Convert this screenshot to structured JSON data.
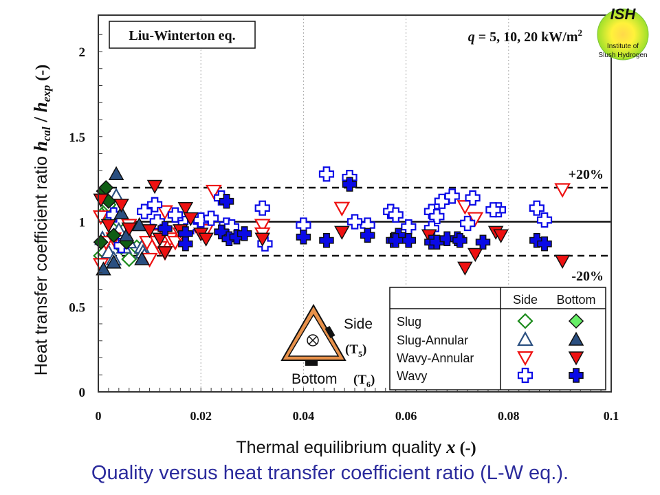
{
  "caption": "Quality versus heat transfer coefficient ratio (L-W eq.).",
  "logo": {
    "abbr": "ISH",
    "line1": "Institute of",
    "line2": "Slush Hydrogen"
  },
  "chart_data": {
    "type": "scatter",
    "title": "Liu-Winterton eq.",
    "annotation": "q = 5, 10, 20 kW/m²",
    "annotation_parts": {
      "var": "q",
      "rest": " = 5, 10, 20 kW/m",
      "sup": "2"
    },
    "xlabel": "Thermal equilibrium quality x (-)",
    "xlabel_parts": {
      "main": "Thermal equilibrium quality ",
      "var": "x",
      "unit": " (-)"
    },
    "ylabel": "Heat transfer coefficient ratio h_cal / h_exp (-)",
    "ylabel_parts": {
      "main": "Heat transfer coefficient ratio ",
      "h1": "h",
      "s1": "cal",
      "slash": " / ",
      "h2": "h",
      "s2": "exp",
      "unit": " (-)"
    },
    "xlim": [
      0,
      0.1
    ],
    "ylim": [
      0,
      2.2
    ],
    "xticks": [
      0,
      0.02,
      0.04,
      0.06,
      0.08,
      0.1
    ],
    "xtick_labels": [
      "0",
      "0.02",
      "0.04",
      "0.06",
      "0.08",
      "0.1"
    ],
    "yticks": [
      0,
      0.5,
      1,
      1.5,
      2
    ],
    "ytick_labels": [
      "0",
      "0.5",
      "1",
      "1.5",
      "2"
    ],
    "grid": "vertical dotted at major x ticks",
    "reference_lines": [
      {
        "y": 1.0,
        "style": "solid"
      },
      {
        "y": 1.2,
        "style": "dashed",
        "label": "+20%"
      },
      {
        "y": 0.8,
        "style": "dashed",
        "label": "-20%"
      }
    ],
    "legend": {
      "placement": "bottom-right",
      "columns": [
        "Side",
        "Bottom"
      ],
      "rows": [
        "Slug",
        "Slug-Annular",
        "Wavy-Annular",
        "Wavy"
      ]
    },
    "inset": {
      "side_label": "Side",
      "side_sensor": "T",
      "side_sub": "5",
      "bottom_label": "Bottom",
      "bottom_sensor": "T",
      "bottom_sub": "6"
    },
    "colors": {
      "slug": "#1a8a1a",
      "slug_fill": "#66ee66",
      "slug_bottom_dark": "#0f5e14",
      "slug_annular": "#2a4f80",
      "wavy_annular": "#ee1111",
      "wavy": "#0a0ae6",
      "inset_orange": "#e8914a"
    },
    "series": [
      {
        "name": "Slug - Side",
        "flow": "Slug",
        "position": "Side",
        "marker": "diamond-open",
        "points": [
          [
            0.0005,
            0.8
          ],
          [
            0.001,
            1.05
          ],
          [
            0.0012,
            0.82
          ],
          [
            0.002,
            1.08
          ],
          [
            0.003,
            0.96
          ],
          [
            0.004,
            1.0
          ],
          [
            0.0045,
            0.85
          ],
          [
            0.006,
            0.78
          ],
          [
            0.0075,
            0.85
          ],
          [
            0.002,
            1.1
          ]
        ]
      },
      {
        "name": "Slug - Bottom",
        "flow": "Slug",
        "position": "Bottom",
        "marker": "diamond-filled",
        "points": [
          [
            0.0005,
            0.88
          ],
          [
            0.001,
            1.18
          ],
          [
            0.0015,
            1.2
          ],
          [
            0.002,
            1.12
          ],
          [
            0.0055,
            0.88
          ],
          [
            0.003,
            0.92
          ]
        ]
      },
      {
        "name": "Slug-Annular - Side",
        "flow": "Slug-Annular",
        "position": "Side",
        "marker": "triangle-up-open",
        "points": [
          [
            0.0008,
            0.9
          ],
          [
            0.002,
            0.82
          ],
          [
            0.003,
            0.78
          ],
          [
            0.0035,
            1.15
          ],
          [
            0.005,
            0.85
          ],
          [
            0.006,
            0.88
          ],
          [
            0.0085,
            0.85
          ],
          [
            0.0087,
            0.82
          ],
          [
            0.009,
            0.8
          ],
          [
            0.004,
            0.95
          ]
        ]
      },
      {
        "name": "Slug-Annular - Bottom",
        "flow": "Slug-Annular",
        "position": "Bottom",
        "marker": "triangle-up-filled",
        "points": [
          [
            0.001,
            0.72
          ],
          [
            0.0035,
            1.28
          ],
          [
            0.003,
            0.76
          ],
          [
            0.0045,
            1.05
          ],
          [
            0.008,
            0.98
          ],
          [
            0.0085,
            0.78
          ],
          [
            0.0055,
            0.92
          ]
        ]
      },
      {
        "name": "Wavy-Annular - Side",
        "flow": "Wavy-Annular",
        "position": "Side",
        "marker": "triangle-down-open",
        "points": [
          [
            0.0005,
            1.03
          ],
          [
            0.0005,
            0.75
          ],
          [
            0.0015,
            0.88
          ],
          [
            0.003,
            0.9
          ],
          [
            0.006,
            0.98
          ],
          [
            0.0095,
            0.88
          ],
          [
            0.01,
            0.78
          ],
          [
            0.011,
            0.92
          ],
          [
            0.012,
            0.85
          ],
          [
            0.013,
            0.82
          ],
          [
            0.014,
            0.9
          ],
          [
            0.015,
            0.88
          ],
          [
            0.016,
            0.93
          ],
          [
            0.017,
            0.95
          ],
          [
            0.018,
            0.97
          ],
          [
            0.019,
            0.98
          ],
          [
            0.02,
            0.94
          ],
          [
            0.021,
            0.95
          ],
          [
            0.0225,
            1.18
          ],
          [
            0.032,
            0.98
          ],
          [
            0.032,
            0.93
          ],
          [
            0.0475,
            1.08
          ],
          [
            0.0715,
            1.09
          ],
          [
            0.0735,
            1.02
          ],
          [
            0.0905,
            1.19
          ],
          [
            0.0115,
            0.88
          ],
          [
            0.013,
            1.06
          ]
        ]
      },
      {
        "name": "Wavy-Annular - Bottom",
        "flow": "Wavy-Annular",
        "position": "Bottom",
        "marker": "triangle-down-filled",
        "points": [
          [
            0.0005,
            1.13
          ],
          [
            0.002,
            0.98
          ],
          [
            0.0045,
            1.1
          ],
          [
            0.006,
            0.96
          ],
          [
            0.011,
            1.21
          ],
          [
            0.012,
            0.9
          ],
          [
            0.013,
            0.82
          ],
          [
            0.016,
            0.95
          ],
          [
            0.017,
            1.08
          ],
          [
            0.018,
            1.02
          ],
          [
            0.02,
            0.93
          ],
          [
            0.021,
            0.9
          ],
          [
            0.032,
            0.9
          ],
          [
            0.0475,
            0.94
          ],
          [
            0.0645,
            0.92
          ],
          [
            0.0715,
            0.73
          ],
          [
            0.0735,
            0.81
          ],
          [
            0.0775,
            0.94
          ],
          [
            0.0785,
            0.92
          ],
          [
            0.0905,
            0.77
          ],
          [
            0.01,
            0.95
          ]
        ]
      },
      {
        "name": "Wavy - Side",
        "flow": "Wavy",
        "position": "Side",
        "marker": "plus-open",
        "points": [
          [
            0.003,
            1.04
          ],
          [
            0.0045,
            0.86
          ],
          [
            0.009,
            1.06
          ],
          [
            0.011,
            1.1
          ],
          [
            0.0115,
            1.0
          ],
          [
            0.015,
            1.04
          ],
          [
            0.017,
            0.99
          ],
          [
            0.018,
            0.97
          ],
          [
            0.02,
            1.01
          ],
          [
            0.022,
            1.02
          ],
          [
            0.024,
            1.14
          ],
          [
            0.025,
            0.98
          ],
          [
            0.026,
            0.97
          ],
          [
            0.032,
            1.08
          ],
          [
            0.0325,
            0.87
          ],
          [
            0.04,
            0.98
          ],
          [
            0.0445,
            1.28
          ],
          [
            0.049,
            1.26
          ],
          [
            0.0525,
            0.98
          ],
          [
            0.057,
            1.06
          ],
          [
            0.058,
            1.04
          ],
          [
            0.0605,
            0.97
          ],
          [
            0.065,
            1.06
          ],
          [
            0.066,
            1.03
          ],
          [
            0.065,
            0.96
          ],
          [
            0.067,
            1.12
          ],
          [
            0.069,
            1.15
          ],
          [
            0.072,
            0.99
          ],
          [
            0.073,
            1.14
          ],
          [
            0.078,
            1.07
          ],
          [
            0.077,
            1.07
          ],
          [
            0.0855,
            1.08
          ],
          [
            0.087,
            1.01
          ],
          [
            0.05,
            1.0
          ]
        ]
      },
      {
        "name": "Wavy - Bottom",
        "flow": "Wavy",
        "position": "Bottom",
        "marker": "plus-filled",
        "points": [
          [
            0.013,
            0.96
          ],
          [
            0.017,
            0.93
          ],
          [
            0.017,
            0.87
          ],
          [
            0.024,
            0.94
          ],
          [
            0.025,
            1.12
          ],
          [
            0.0255,
            0.9
          ],
          [
            0.027,
            0.91
          ],
          [
            0.0285,
            0.93
          ],
          [
            0.04,
            0.91
          ],
          [
            0.0445,
            0.89
          ],
          [
            0.049,
            1.22
          ],
          [
            0.0525,
            0.92
          ],
          [
            0.0575,
            0.89
          ],
          [
            0.0585,
            0.92
          ],
          [
            0.0605,
            0.89
          ],
          [
            0.065,
            0.88
          ],
          [
            0.066,
            0.88
          ],
          [
            0.068,
            0.9
          ],
          [
            0.07,
            0.9
          ],
          [
            0.0705,
            0.89
          ],
          [
            0.075,
            0.88
          ],
          [
            0.0855,
            0.89
          ],
          [
            0.087,
            0.87
          ],
          [
            0.058,
            0.89
          ]
        ]
      }
    ]
  }
}
